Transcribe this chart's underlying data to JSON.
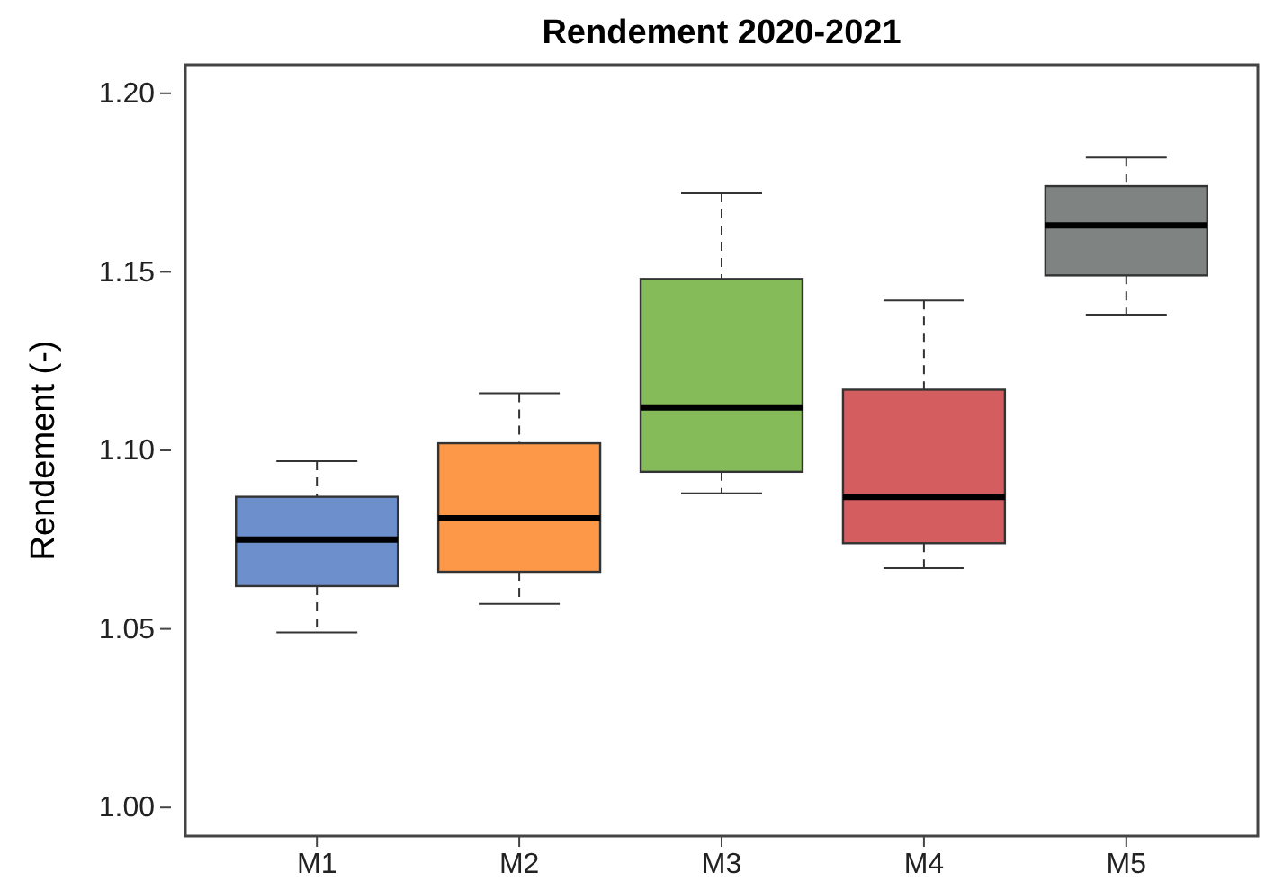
{
  "chart_data": {
    "type": "box",
    "title": "Rendement 2020-2021",
    "ylabel": "Rendement (-)",
    "categories": [
      "M1",
      "M2",
      "M3",
      "M4",
      "M5"
    ],
    "colors": [
      "#6d8fcb",
      "#fd9848",
      "#86bb5a",
      "#d45d5f",
      "#7f8482"
    ],
    "boxes": [
      {
        "low": 1.049,
        "q1": 1.062,
        "median": 1.075,
        "q3": 1.087,
        "high": 1.097
      },
      {
        "low": 1.057,
        "q1": 1.066,
        "median": 1.081,
        "q3": 1.102,
        "high": 1.116
      },
      {
        "low": 1.088,
        "q1": 1.094,
        "median": 1.112,
        "q3": 1.148,
        "high": 1.172
      },
      {
        "low": 1.067,
        "q1": 1.074,
        "median": 1.087,
        "q3": 1.117,
        "high": 1.142
      },
      {
        "low": 1.138,
        "q1": 1.149,
        "median": 1.163,
        "q3": 1.174,
        "high": 1.182
      }
    ],
    "ylim": [
      0.992,
      1.208
    ],
    "yticks": [
      {
        "value": 1.0,
        "label": "1.00"
      },
      1.05,
      {
        "value": 1.1,
        "label": "1.10"
      },
      1.15,
      {
        "value": 1.2,
        "label": "1.20"
      }
    ],
    "grid": false,
    "legend": false
  }
}
